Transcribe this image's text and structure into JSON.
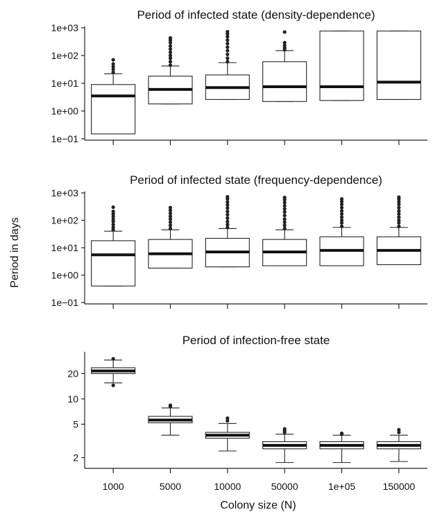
{
  "figure": {
    "ylabel": "Period in days",
    "xlabel": "Colony size (N)",
    "categories": [
      "1000",
      "5000",
      "10000",
      "50000",
      "1e+05",
      "150000"
    ]
  },
  "chart_data": [
    {
      "type": "box",
      "title": "Period of infected state (density-dependence)",
      "yscale": "log",
      "ylim": [
        0.1,
        1000
      ],
      "yticks": [
        0.1,
        1,
        10,
        100,
        1000
      ],
      "ytick_labels": [
        "1e−01",
        "1e+00",
        "1e+01",
        "1e+02",
        "1e+03"
      ],
      "categories": [
        "1000",
        "5000",
        "10000",
        "50000",
        "1e+05",
        "150000"
      ],
      "boxes": [
        {
          "q1": 0.15,
          "median": 3.5,
          "q3": 9,
          "lower_whisker": 0.15,
          "upper_whisker": 22,
          "outliers": [
            25,
            32,
            40,
            50,
            70
          ]
        },
        {
          "q1": 1.8,
          "median": 6,
          "q3": 18,
          "lower_whisker": 1.8,
          "upper_whisker": 42,
          "outliers": [
            45,
            60,
            80,
            100,
            130,
            170,
            220,
            290,
            360,
            430
          ]
        },
        {
          "q1": 2.6,
          "median": 7,
          "q3": 20,
          "lower_whisker": 2.6,
          "upper_whisker": 55,
          "outliers": [
            60,
            80,
            110,
            150,
            200,
            270,
            360,
            480,
            600,
            720
          ]
        },
        {
          "q1": 2.2,
          "median": 7.5,
          "q3": 60,
          "lower_whisker": 2.2,
          "upper_whisker": 150,
          "outliers": [
            160,
            190,
            230,
            290,
            700
          ]
        },
        {
          "q1": 2.4,
          "median": 7.5,
          "q3": 760,
          "lower_whisker": 2.4,
          "upper_whisker": 760,
          "outliers": []
        },
        {
          "q1": 2.6,
          "median": 11,
          "q3": 760,
          "lower_whisker": 2.6,
          "upper_whisker": 760,
          "outliers": []
        }
      ]
    },
    {
      "type": "box",
      "title": "Period of infected state (frequency-dependence)",
      "yscale": "log",
      "ylim": [
        0.1,
        1000
      ],
      "yticks": [
        0.1,
        1,
        10,
        100,
        1000
      ],
      "ytick_labels": [
        "1e−01",
        "1e+00",
        "1e+01",
        "1e+02",
        "1e+03"
      ],
      "categories": [
        "1000",
        "5000",
        "10000",
        "50000",
        "1e+05",
        "150000"
      ],
      "boxes": [
        {
          "q1": 0.4,
          "median": 5.5,
          "q3": 18,
          "lower_whisker": 0.4,
          "upper_whisker": 40,
          "outliers": [
            45,
            55,
            70,
            90,
            110,
            140,
            170,
            210,
            300
          ]
        },
        {
          "q1": 1.8,
          "median": 6,
          "q3": 20,
          "lower_whisker": 1.8,
          "upper_whisker": 45,
          "outliers": [
            50,
            65,
            85,
            110,
            140,
            180,
            230,
            290
          ]
        },
        {
          "q1": 2.0,
          "median": 7,
          "q3": 22,
          "lower_whisker": 2.0,
          "upper_whisker": 50,
          "outliers": [
            55,
            70,
            90,
            120,
            160,
            210,
            280,
            360,
            460,
            600,
            720
          ]
        },
        {
          "q1": 2.2,
          "median": 7,
          "q3": 20,
          "lower_whisker": 2.2,
          "upper_whisker": 45,
          "outliers": [
            50,
            65,
            85,
            110,
            150,
            200,
            260,
            340,
            440,
            560,
            680
          ]
        },
        {
          "q1": 2.2,
          "median": 8,
          "q3": 25,
          "lower_whisker": 2.2,
          "upper_whisker": 55,
          "outliers": [
            60,
            80,
            100,
            130,
            170,
            220,
            290,
            380,
            480,
            600
          ]
        },
        {
          "q1": 2.4,
          "median": 8,
          "q3": 25,
          "lower_whisker": 2.4,
          "upper_whisker": 55,
          "outliers": [
            60,
            80,
            100,
            130,
            170,
            220,
            290,
            380,
            480,
            600,
            700
          ]
        }
      ]
    },
    {
      "type": "box",
      "title": "Period of infection-free state",
      "yscale": "log",
      "ylim": [
        1.55,
        35
      ],
      "yticks": [
        2,
        5,
        10,
        20
      ],
      "ytick_labels": [
        "2",
        "5",
        "10",
        "20"
      ],
      "categories": [
        "1000",
        "5000",
        "10000",
        "50000",
        "1e+05",
        "150000"
      ],
      "boxes": [
        {
          "q1": 20,
          "median": 21.5,
          "q3": 23.5,
          "lower_whisker": 15.5,
          "upper_whisker": 29,
          "outliers": [
            14.5,
            30
          ]
        },
        {
          "q1": 5.2,
          "median": 5.6,
          "q3": 6.2,
          "lower_whisker": 3.7,
          "upper_whisker": 7.8,
          "outliers": [
            8.1,
            8.4
          ]
        },
        {
          "q1": 3.4,
          "median": 3.7,
          "q3": 4.0,
          "lower_whisker": 2.4,
          "upper_whisker": 5.1,
          "outliers": [
            5.5,
            5.9
          ]
        },
        {
          "q1": 2.55,
          "median": 2.8,
          "q3": 3.1,
          "lower_whisker": 1.75,
          "upper_whisker": 3.8,
          "outliers": [
            4.0,
            4.2,
            4.4
          ]
        },
        {
          "q1": 2.55,
          "median": 2.8,
          "q3": 3.1,
          "lower_whisker": 1.75,
          "upper_whisker": 3.7,
          "outliers": [
            3.8,
            3.9
          ]
        },
        {
          "q1": 2.55,
          "median": 2.8,
          "q3": 3.1,
          "lower_whisker": 1.8,
          "upper_whisker": 3.7,
          "outliers": [
            4.0,
            4.3
          ]
        }
      ]
    }
  ]
}
